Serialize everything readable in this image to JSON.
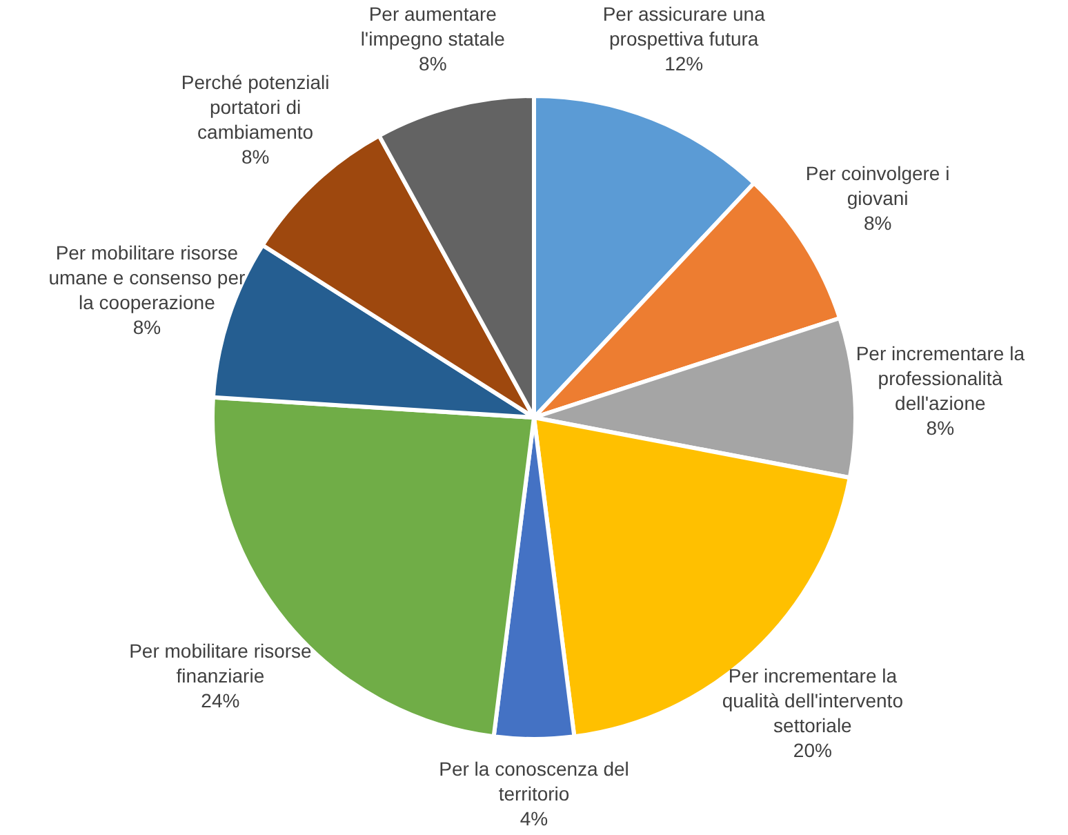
{
  "chart_data": {
    "type": "pie",
    "categories": [
      "Per assicurare una prospettiva futura",
      "Per coinvolgere i giovani",
      "Per incrementare la professionalità dell'azione",
      "Per incrementare la qualità dell'intervento settoriale",
      "Per la conoscenza del territorio",
      "Per mobilitare risorse finanziarie",
      "Per mobilitare risorse umane e consenso per la cooperazione",
      "Perché potenziali portatori di cambiamento",
      "Per aumentare l'impegno statale"
    ],
    "values": [
      12,
      8,
      8,
      20,
      4,
      24,
      8,
      8,
      8
    ],
    "value_labels": [
      "12%",
      "8%",
      "8%",
      "20%",
      "4%",
      "24%",
      "8%",
      "8%",
      "8%"
    ],
    "colors": [
      "#5b9bd5",
      "#ed7d31",
      "#a5a5a5",
      "#ffc000",
      "#4472c4",
      "#70ad47",
      "#255e91",
      "#9e480e",
      "#636363"
    ],
    "legend": false
  }
}
